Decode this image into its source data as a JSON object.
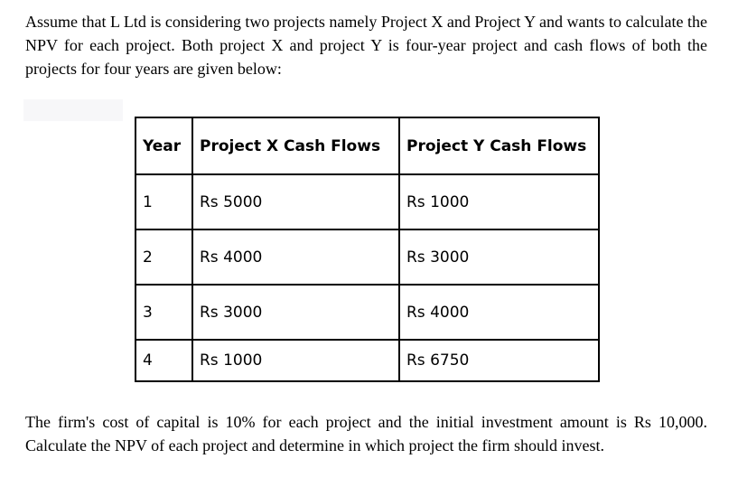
{
  "intro_text": "Assume that L Ltd  is considering two projects namely Project X and Project Y and wants to calculate the NPV for each project. Both project X and project Y is four-year project and cash flows of both the projects for four years are given below:",
  "table": {
    "headers": [
      "Year",
      "Project X Cash Flows",
      "Project Y Cash Flows"
    ],
    "rows": [
      [
        "1",
        "Rs  5000",
        "Rs  1000"
      ],
      [
        "2",
        "Rs  4000",
        "Rs  3000"
      ],
      [
        "3",
        "Rs  3000",
        "Rs  4000"
      ],
      [
        "4",
        "Rs  1000",
        "Rs  6750"
      ]
    ]
  },
  "closing_text": "The firm's cost of capital is 10% for each project and the initial investment amount is Rs 10,000. Calculate the NPV of each project and determine in which project the firm should invest."
}
